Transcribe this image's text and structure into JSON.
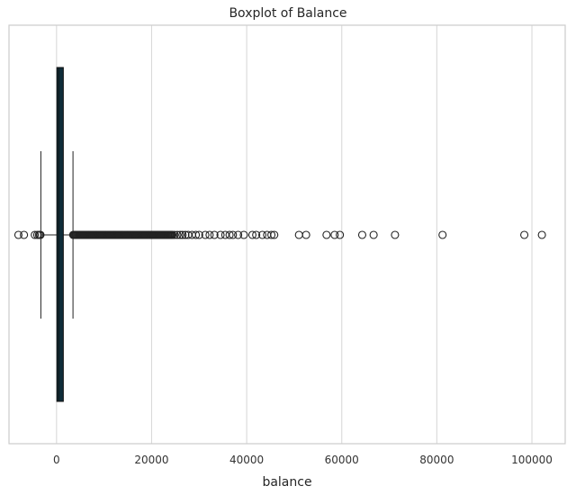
{
  "chart_data": {
    "type": "boxplot",
    "orientation": "horizontal",
    "title": "Boxplot of Balance",
    "xlabel": "balance",
    "ylabel": "",
    "xlim": [
      -10000,
      107000
    ],
    "xticks": [
      0,
      20000,
      40000,
      60000,
      80000,
      100000
    ],
    "xtick_labels": [
      "0",
      "20000",
      "40000",
      "60000",
      "80000",
      "100000"
    ],
    "grid": "vertical",
    "box": {
      "whisker_low": -3300,
      "q1": 72,
      "median": 448,
      "q3": 1428,
      "whisker_high": 3460,
      "fill": "#0f2d3a"
    },
    "outliers_dense_range": [
      3500,
      24500
    ],
    "outliers": [
      -8020,
      -6850,
      -4570,
      -4060,
      -3700,
      -3480,
      -3380,
      24800,
      25400,
      26000,
      26500,
      27100,
      27700,
      28500,
      29300,
      30000,
      31300,
      32200,
      33200,
      34500,
      35500,
      36400,
      37100,
      38200,
      39400,
      41200,
      42000,
      43300,
      44300,
      45200,
      45800,
      51000,
      52500,
      56800,
      58500,
      59600,
      64300,
      66700,
      71200,
      81200,
      98400,
      102100
    ]
  }
}
